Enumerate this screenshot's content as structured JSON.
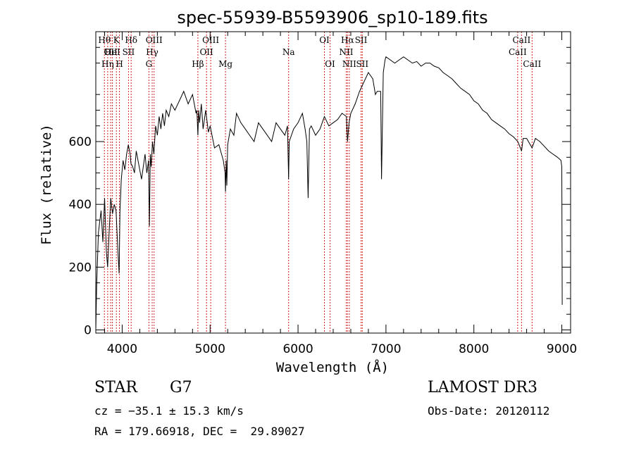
{
  "chart_data": {
    "type": "line",
    "title": "spec-55939-B5593906_sp10-189.fits",
    "xlabel": "Wavelength (Å)",
    "ylabel": "Flux (relative)",
    "xlim": [
      3700,
      9100
    ],
    "ylim": [
      -10,
      950
    ],
    "xticks": [
      4000,
      5000,
      6000,
      7000,
      8000,
      9000
    ],
    "yticks": [
      0,
      200,
      400,
      600
    ],
    "series": [
      {
        "name": "flux",
        "x": [
          3700,
          3710,
          3730,
          3760,
          3780,
          3800,
          3820,
          3835,
          3850,
          3870,
          3890,
          3910,
          3930,
          3950,
          3965,
          3975,
          3990,
          4010,
          4030,
          4050,
          4070,
          4090,
          4100,
          4120,
          4140,
          4160,
          4180,
          4200,
          4220,
          4240,
          4260,
          4280,
          4300,
          4310,
          4320,
          4330,
          4345,
          4360,
          4380,
          4400,
          4420,
          4440,
          4460,
          4480,
          4500,
          4530,
          4560,
          4600,
          4650,
          4700,
          4750,
          4800,
          4840,
          4850,
          4861,
          4870,
          4880,
          4900,
          4920,
          4950,
          4980,
          5000,
          5050,
          5100,
          5150,
          5170,
          5175,
          5183,
          5190,
          5200,
          5230,
          5270,
          5300,
          5350,
          5400,
          5450,
          5500,
          5550,
          5600,
          5650,
          5700,
          5750,
          5800,
          5850,
          5880,
          5893,
          5900,
          5950,
          6000,
          6050,
          6080,
          6100,
          6115,
          6130,
          6150,
          6200,
          6250,
          6300,
          6350,
          6400,
          6450,
          6500,
          6550,
          6563,
          6580,
          6600,
          6650,
          6700,
          6750,
          6800,
          6850,
          6880,
          6900,
          6940,
          6950,
          6970,
          6990,
          7000,
          7050,
          7100,
          7150,
          7200,
          7250,
          7300,
          7350,
          7400,
          7450,
          7500,
          7550,
          7600,
          7650,
          7700,
          7750,
          7800,
          7850,
          7900,
          7950,
          8000,
          8050,
          8100,
          8150,
          8200,
          8250,
          8300,
          8350,
          8400,
          8450,
          8500,
          8542,
          8560,
          8600,
          8662,
          8700,
          8750,
          8800,
          8850,
          8900,
          8950,
          8990,
          9000,
          9005
        ],
        "values": [
          0,
          140,
          310,
          380,
          280,
          420,
          250,
          200,
          300,
          420,
          370,
          400,
          380,
          260,
          180,
          380,
          480,
          540,
          510,
          560,
          590,
          560,
          530,
          520,
          500,
          570,
          540,
          510,
          480,
          520,
          560,
          500,
          540,
          330,
          560,
          520,
          600,
          560,
          650,
          620,
          680,
          640,
          690,
          650,
          700,
          680,
          720,
          700,
          730,
          760,
          720,
          750,
          690,
          700,
          620,
          700,
          660,
          720,
          640,
          700,
          630,
          650,
          580,
          590,
          540,
          500,
          440,
          540,
          460,
          590,
          640,
          620,
          690,
          660,
          640,
          620,
          600,
          660,
          640,
          620,
          600,
          660,
          640,
          620,
          650,
          480,
          600,
          640,
          660,
          690,
          640,
          600,
          420,
          640,
          650,
          620,
          640,
          680,
          650,
          660,
          670,
          690,
          680,
          600,
          660,
          690,
          720,
          760,
          790,
          820,
          800,
          750,
          760,
          760,
          480,
          820,
          860,
          870,
          860,
          850,
          860,
          870,
          860,
          850,
          855,
          840,
          850,
          850,
          840,
          835,
          820,
          810,
          800,
          785,
          770,
          760,
          750,
          730,
          720,
          700,
          690,
          670,
          660,
          650,
          640,
          625,
          615,
          600,
          570,
          610,
          610,
          580,
          610,
          600,
          585,
          570,
          560,
          550,
          540,
          520,
          80
        ]
      }
    ],
    "line_labels": [
      {
        "wl": 3798,
        "text": "Hθ",
        "row": 1
      },
      {
        "wl": 3835,
        "text": "Hη",
        "row": 3
      },
      {
        "wl": 3869,
        "text": "OII",
        "row": 2
      },
      {
        "wl": 3889,
        "text": "HeI",
        "row": 2
      },
      {
        "wl": 3934,
        "text": "K",
        "row": 1
      },
      {
        "wl": 3969,
        "text": "H",
        "row": 3
      },
      {
        "wl": 4072,
        "text": "SII",
        "row": 2
      },
      {
        "wl": 4102,
        "text": "Hδ",
        "row": 1
      },
      {
        "wl": 4304,
        "text": "G",
        "row": 3
      },
      {
        "wl": 4341,
        "text": "Hγ",
        "row": 2
      },
      {
        "wl": 4363,
        "text": "OIII",
        "row": 1
      },
      {
        "wl": 4861,
        "text": "Hβ",
        "row": 3
      },
      {
        "wl": 4959,
        "text": "OII",
        "row": 2
      },
      {
        "wl": 5007,
        "text": "OIII",
        "row": 1
      },
      {
        "wl": 5175,
        "text": "Mg",
        "row": 3
      },
      {
        "wl": 5893,
        "text": "Na",
        "row": 2
      },
      {
        "wl": 6300,
        "text": "OI",
        "row": 1
      },
      {
        "wl": 6364,
        "text": "OI",
        "row": 3
      },
      {
        "wl": 6548,
        "text": "NII",
        "row": 2
      },
      {
        "wl": 6563,
        "text": "Hα",
        "row": 1
      },
      {
        "wl": 6583,
        "text": "NII",
        "row": 3
      },
      {
        "wl": 6717,
        "text": "SII",
        "row": 1
      },
      {
        "wl": 6731,
        "text": "SII",
        "row": 3
      },
      {
        "wl": 8498,
        "text": "CaII",
        "row": 2
      },
      {
        "wl": 8542,
        "text": "CaII",
        "row": 1
      },
      {
        "wl": 8662,
        "text": "CaII",
        "row": 3
      }
    ]
  },
  "info": {
    "object_class": "STAR",
    "subclass": "G7",
    "survey": "LAMOST DR3",
    "redshift_line": "cz = −35.1 ± 15.3 km/s",
    "obs_date_line": "Obs-Date: 20120112",
    "coords_line": "RA = 179.66918, DEC =  29.89027"
  }
}
